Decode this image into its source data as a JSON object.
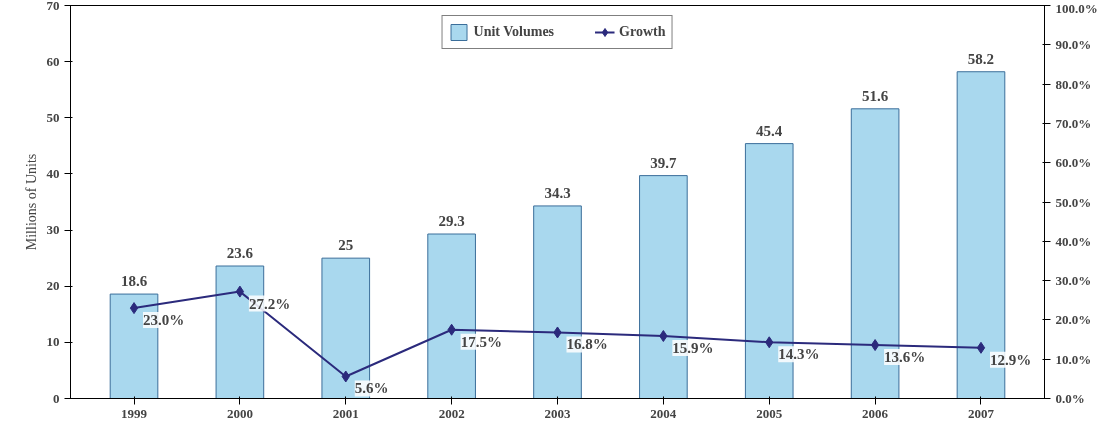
{
  "chart_data": {
    "type": "bar",
    "ylabel": "Millions of Units",
    "categories": [
      "1999",
      "2000",
      "2001",
      "2002",
      "2003",
      "2004",
      "2005",
      "2006",
      "2007"
    ],
    "series": [
      {
        "name": "Unit Volumes",
        "color": "#a9d8ee",
        "values": [
          18.6,
          23.6,
          25,
          29.3,
          34.3,
          39.7,
          45.4,
          51.6,
          58.2
        ],
        "value_labels": [
          "18.6",
          "23.6",
          "25",
          "29.3",
          "34.3",
          "39.7",
          "45.4",
          "51.6",
          "58.2"
        ]
      },
      {
        "name": "Growth",
        "type": "line",
        "axis": "y2",
        "color": "#2b2a7c",
        "marker": "diamond",
        "values": [
          23.0,
          27.2,
          5.6,
          17.5,
          16.8,
          15.9,
          14.3,
          13.6,
          12.9
        ],
        "value_labels": [
          "23.0%",
          "27.2%",
          "5.6%",
          "17.5%",
          "16.8%",
          "15.9%",
          "14.3%",
          "13.6%",
          "12.9%"
        ]
      }
    ],
    "ylim": [
      0,
      70
    ],
    "yticks": [
      0,
      10,
      20,
      30,
      40,
      50,
      60,
      70
    ],
    "y2lim": [
      0,
      100
    ],
    "y2ticks": [
      {
        "value": 0,
        "label": "0.0%"
      },
      {
        "value": 10,
        "label": "10.0%"
      },
      {
        "value": 20,
        "label": "20.0%"
      },
      {
        "value": 30,
        "label": "30.0%"
      },
      {
        "value": 40,
        "label": "40.0%"
      },
      {
        "value": 50,
        "label": "50.0%"
      },
      {
        "value": 60,
        "label": "60.0%"
      },
      {
        "value": 70,
        "label": "70.0%"
      },
      {
        "value": 80,
        "label": "80.0%"
      },
      {
        "value": 90,
        "label": "90.0%"
      },
      {
        "value": 100,
        "label": "100.0%"
      }
    ],
    "grid": false,
    "legend": "top"
  }
}
